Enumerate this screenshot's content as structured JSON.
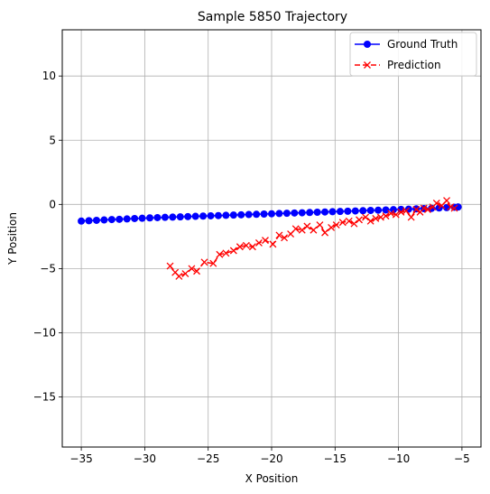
{
  "chart_data": {
    "type": "line",
    "title": "Sample 5850 Trajectory",
    "xlabel": "X Position",
    "ylabel": "Y Position",
    "xlim": [
      -36.5,
      -3.5
    ],
    "ylim": [
      -18.9,
      13.6
    ],
    "xticks": [
      -35,
      -30,
      -25,
      -20,
      -15,
      -10,
      -5
    ],
    "yticks": [
      -15,
      -10,
      -5,
      0,
      5,
      10
    ],
    "xtick_labels": [
      "−35",
      "−30",
      "−25",
      "−20",
      "−15",
      "−10",
      "−5"
    ],
    "ytick_labels": [
      "−15",
      "−10",
      "−5",
      "0",
      "5",
      "10"
    ],
    "grid": true,
    "legend_position": "top-right",
    "series": [
      {
        "name": "Ground Truth",
        "color": "#0000ff",
        "marker": "circle",
        "line_style": "solid",
        "x": [
          -35.0,
          -34.4,
          -33.8,
          -33.2,
          -32.6,
          -32.0,
          -31.4,
          -30.8,
          -30.2,
          -29.6,
          -29.0,
          -28.4,
          -27.8,
          -27.2,
          -26.6,
          -26.0,
          -25.4,
          -24.8,
          -24.2,
          -23.6,
          -23.0,
          -22.4,
          -21.8,
          -21.2,
          -20.6,
          -20.0,
          -19.4,
          -18.8,
          -18.2,
          -17.6,
          -17.0,
          -16.4,
          -15.8,
          -15.2,
          -14.6,
          -14.0,
          -13.4,
          -12.8,
          -12.2,
          -11.6,
          -11.0,
          -10.4,
          -9.8,
          -9.2,
          -8.6,
          -8.0,
          -7.4,
          -6.8,
          -6.2,
          -5.6,
          -5.3
        ],
        "y": [
          -1.3,
          -1.27,
          -1.24,
          -1.21,
          -1.18,
          -1.16,
          -1.13,
          -1.1,
          -1.08,
          -1.05,
          -1.03,
          -1.01,
          -0.99,
          -0.97,
          -0.95,
          -0.93,
          -0.91,
          -0.89,
          -0.87,
          -0.85,
          -0.83,
          -0.81,
          -0.79,
          -0.77,
          -0.75,
          -0.73,
          -0.71,
          -0.69,
          -0.67,
          -0.65,
          -0.63,
          -0.61,
          -0.59,
          -0.57,
          -0.55,
          -0.53,
          -0.51,
          -0.49,
          -0.47,
          -0.45,
          -0.43,
          -0.41,
          -0.39,
          -0.37,
          -0.35,
          -0.33,
          -0.31,
          -0.28,
          -0.25,
          -0.22,
          -0.2
        ]
      },
      {
        "name": "Prediction",
        "color": "#ff0000",
        "marker": "x",
        "line_style": "dashed",
        "x": [
          -28.0,
          -27.6,
          -27.3,
          -26.8,
          -26.3,
          -25.9,
          -25.3,
          -24.6,
          -24.1,
          -23.6,
          -23.0,
          -22.5,
          -22.0,
          -21.5,
          -21.0,
          -20.5,
          -19.9,
          -19.4,
          -19.0,
          -18.5,
          -18.1,
          -17.6,
          -17.2,
          -16.7,
          -16.2,
          -15.8,
          -15.3,
          -14.9,
          -14.4,
          -13.9,
          -13.5,
          -13.1,
          -12.6,
          -12.2,
          -11.8,
          -11.4,
          -11.0,
          -10.6,
          -10.2,
          -9.8,
          -9.4,
          -9.0,
          -8.6,
          -8.3,
          -8.0,
          -7.7,
          -7.3,
          -7.0,
          -6.6,
          -6.2,
          -5.9,
          -5.6
        ],
        "y": [
          -4.8,
          -5.3,
          -5.6,
          -5.4,
          -5.0,
          -5.2,
          -4.5,
          -4.6,
          -3.9,
          -3.8,
          -3.6,
          -3.3,
          -3.2,
          -3.3,
          -3.0,
          -2.8,
          -3.1,
          -2.4,
          -2.6,
          -2.3,
          -1.9,
          -2.0,
          -1.7,
          -2.0,
          -1.6,
          -2.2,
          -1.8,
          -1.6,
          -1.4,
          -1.3,
          -1.5,
          -1.2,
          -1.0,
          -1.3,
          -1.1,
          -1.0,
          -0.9,
          -0.7,
          -0.8,
          -0.6,
          -0.5,
          -1.0,
          -0.4,
          -0.6,
          -0.3,
          -0.4,
          -0.2,
          0.1,
          -0.1,
          0.3,
          -0.2,
          -0.3
        ]
      }
    ]
  }
}
